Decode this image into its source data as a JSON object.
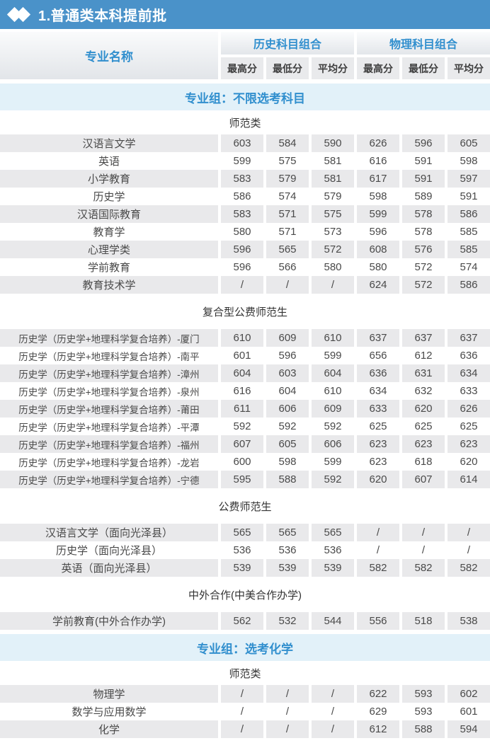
{
  "colors": {
    "bar_blue": "#4a92c9",
    "accent_blue": "#318fce",
    "band_bg": "#e2f1f9",
    "cell_gray": "#e9e9eb"
  },
  "header": {
    "icon": "double-diamond-icon",
    "title": "1.普通类本科提前批"
  },
  "table": {
    "name_col": "专业名称",
    "groups": [
      {
        "label": "历史科目组合"
      },
      {
        "label": "物理科目组合"
      }
    ],
    "sub_cols": [
      "最高分",
      "最低分",
      "平均分"
    ],
    "sections": [
      {
        "band": "专业组：不限选考科目",
        "blocks": [
          {
            "category": "师范类",
            "rows": [
              {
                "name": "汉语言文学",
                "scores": [
                  "603",
                  "584",
                  "590",
                  "626",
                  "596",
                  "605"
                ]
              },
              {
                "name": "英语",
                "scores": [
                  "599",
                  "575",
                  "581",
                  "616",
                  "591",
                  "598"
                ]
              },
              {
                "name": "小学教育",
                "scores": [
                  "583",
                  "579",
                  "581",
                  "617",
                  "591",
                  "597"
                ]
              },
              {
                "name": "历史学",
                "scores": [
                  "586",
                  "574",
                  "579",
                  "598",
                  "589",
                  "591"
                ]
              },
              {
                "name": "汉语国际教育",
                "scores": [
                  "583",
                  "571",
                  "575",
                  "599",
                  "578",
                  "586"
                ]
              },
              {
                "name": "教育学",
                "scores": [
                  "580",
                  "571",
                  "573",
                  "596",
                  "578",
                  "585"
                ]
              },
              {
                "name": "心理学类",
                "scores": [
                  "596",
                  "565",
                  "572",
                  "608",
                  "576",
                  "585"
                ]
              },
              {
                "name": "学前教育",
                "scores": [
                  "596",
                  "566",
                  "580",
                  "580",
                  "572",
                  "574"
                ]
              },
              {
                "name": "教育技术学",
                "scores": [
                  "/",
                  "/",
                  "/",
                  "624",
                  "572",
                  "586"
                ]
              }
            ]
          },
          {
            "category": "复合型公费师范生",
            "rows": [
              {
                "name": "历史学（历史学+地理科学复合培养）-厦门",
                "scores": [
                  "610",
                  "609",
                  "610",
                  "637",
                  "637",
                  "637"
                ]
              },
              {
                "name": "历史学（历史学+地理科学复合培养）-南平",
                "scores": [
                  "601",
                  "596",
                  "599",
                  "656",
                  "612",
                  "636"
                ]
              },
              {
                "name": "历史学（历史学+地理科学复合培养）-漳州",
                "scores": [
                  "604",
                  "603",
                  "604",
                  "636",
                  "631",
                  "634"
                ]
              },
              {
                "name": "历史学（历史学+地理科学复合培养）-泉州",
                "scores": [
                  "616",
                  "604",
                  "610",
                  "634",
                  "632",
                  "633"
                ]
              },
              {
                "name": "历史学（历史学+地理科学复合培养）-莆田",
                "scores": [
                  "611",
                  "606",
                  "609",
                  "633",
                  "620",
                  "626"
                ]
              },
              {
                "name": "历史学（历史学+地理科学复合培养）-平潭",
                "scores": [
                  "592",
                  "592",
                  "592",
                  "625",
                  "625",
                  "625"
                ]
              },
              {
                "name": "历史学（历史学+地理科学复合培养）-福州",
                "scores": [
                  "607",
                  "605",
                  "606",
                  "623",
                  "623",
                  "623"
                ]
              },
              {
                "name": "历史学（历史学+地理科学复合培养）-龙岩",
                "scores": [
                  "600",
                  "598",
                  "599",
                  "623",
                  "618",
                  "620"
                ]
              },
              {
                "name": "历史学（历史学+地理科学复合培养）-宁德",
                "scores": [
                  "595",
                  "588",
                  "592",
                  "620",
                  "607",
                  "614"
                ]
              }
            ]
          },
          {
            "category": "公费师范生",
            "rows": [
              {
                "name": "汉语言文学（面向光泽县）",
                "scores": [
                  "565",
                  "565",
                  "565",
                  "/",
                  "/",
                  "/"
                ]
              },
              {
                "name": "历史学（面向光泽县）",
                "scores": [
                  "536",
                  "536",
                  "536",
                  "/",
                  "/",
                  "/"
                ]
              },
              {
                "name": "英语（面向光泽县）",
                "scores": [
                  "539",
                  "539",
                  "539",
                  "582",
                  "582",
                  "582"
                ]
              }
            ]
          },
          {
            "category": "中外合作(中美合作办学)",
            "rows": [
              {
                "name": "学前教育(中外合作办学)",
                "scores": [
                  "562",
                  "532",
                  "544",
                  "556",
                  "518",
                  "538"
                ]
              }
            ]
          }
        ]
      },
      {
        "band": "专业组：选考化学",
        "blocks": [
          {
            "category": "师范类",
            "rows": [
              {
                "name": "物理学",
                "scores": [
                  "/",
                  "/",
                  "/",
                  "622",
                  "593",
                  "602"
                ]
              },
              {
                "name": "数学与应用数学",
                "scores": [
                  "/",
                  "/",
                  "/",
                  "629",
                  "593",
                  "601"
                ]
              },
              {
                "name": "化学",
                "scores": [
                  "/",
                  "/",
                  "/",
                  "612",
                  "588",
                  "594"
                ]
              }
            ]
          }
        ]
      }
    ]
  }
}
